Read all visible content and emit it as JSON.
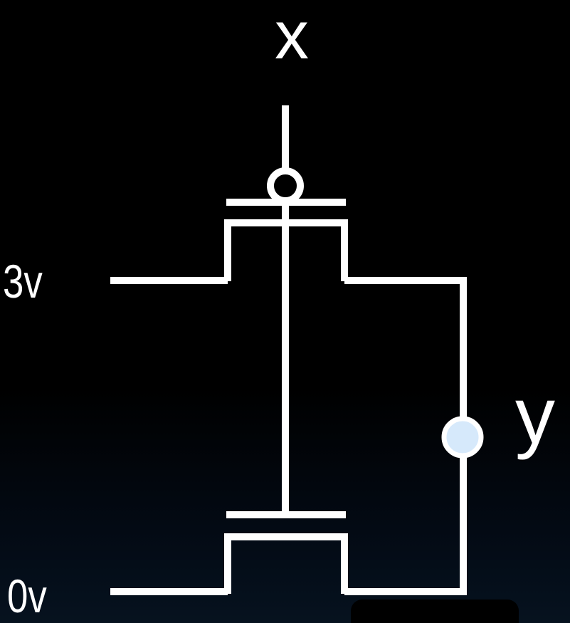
{
  "labels": {
    "input": "x",
    "output": "y",
    "supply_high": "3v",
    "supply_low": "0v"
  },
  "colors": {
    "background": "#000000",
    "wire": "#ffffff",
    "output_node_fill": "#d6e9fb",
    "input_bubble_fill": "#000000"
  }
}
